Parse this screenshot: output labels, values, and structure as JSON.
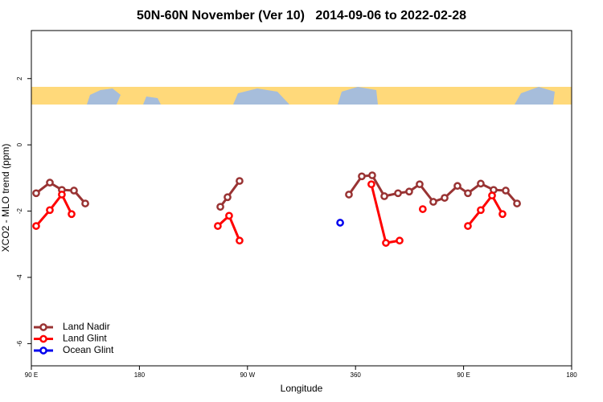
{
  "chart_data": {
    "type": "line",
    "title": "50N-60N November (Ver 10)   2014-09-06 to 2022-02-28",
    "xlabel": "Longitude",
    "ylabel": "XCO2 - MLO trend (ppm)",
    "xlim": [
      90,
      540
    ],
    "ylim": [
      -6.67,
      3.45
    ],
    "xticks": [
      {
        "value": 90,
        "label": "90 E"
      },
      180,
      {
        "value": 270,
        "label": "90 W"
      },
      360,
      {
        "value": 450,
        "label": "90 E"
      },
      180
    ],
    "yticks": [
      -6,
      -4,
      -2,
      0,
      2
    ],
    "legend": "bottom-left",
    "series": [
      {
        "name": "Land Nadir",
        "color": "#993333",
        "x": [
          94,
          105.4,
          115.4,
          125.5,
          134.9,
          null,
          247.4,
          253.4,
          263.4,
          null,
          354.5,
          365.2,
          373.9,
          384,
          395.4,
          404.7,
          413.4,
          424.8,
          434.2,
          444.9,
          453.6,
          464.3,
          475,
          485.1,
          494.5
        ],
        "values": [
          -1.46,
          -1.14,
          -1.36,
          -1.38,
          -1.77,
          null,
          -1.87,
          -1.58,
          -1.09,
          null,
          -1.5,
          -0.95,
          -0.92,
          -1.55,
          -1.46,
          -1.41,
          -1.19,
          -1.72,
          -1.6,
          -1.24,
          -1.46,
          -1.17,
          -1.36,
          -1.38,
          -1.77
        ]
      },
      {
        "name": "Land Glint",
        "color": "#ff0000",
        "x": [
          94,
          105.4,
          115.4,
          123.5,
          null,
          245.3,
          254.7,
          263.4,
          null,
          373.2,
          385.3,
          396.7,
          null,
          416,
          null,
          453.6,
          464.3,
          473.7,
          482.4
        ],
        "values": [
          -2.45,
          -1.97,
          -1.5,
          -2.09,
          null,
          -2.45,
          -2.14,
          -2.89,
          null,
          -1.19,
          -2.96,
          -2.89,
          null,
          -1.94,
          null,
          -2.45,
          -1.97,
          -1.53,
          -2.09
        ]
      },
      {
        "name": "Ocean Glint",
        "color": "#0000ee",
        "x": [
          347.2
        ],
        "values": [
          -2.35
        ]
      }
    ]
  }
}
